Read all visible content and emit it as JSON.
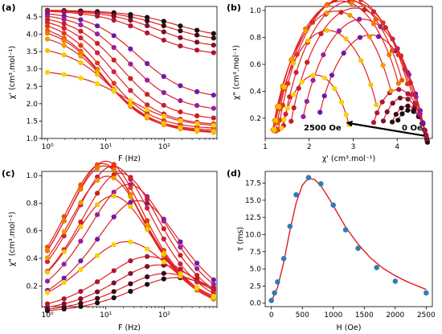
{
  "figure": {
    "panels": [
      {
        "label": "(a)",
        "xlabel": "F (Hz)",
        "ylabel": "χ' (cm³.mol⁻¹)"
      },
      {
        "label": "(b)",
        "xlabel": "χ' (cm³.mol⁻¹)",
        "ylabel": "χ\" (cm³.mol⁻¹)",
        "annotations": {
          "left": "2500 Oe",
          "right": "0 Oe"
        }
      },
      {
        "label": "(c)",
        "xlabel": "F (Hz)",
        "ylabel": "χ\" (cm³.mol⁻¹)"
      },
      {
        "label": "(d)",
        "xlabel": "H (Oe)",
        "ylabel": "τ (ms)"
      }
    ]
  },
  "chart_data": [
    {
      "type": "scatter",
      "title": "",
      "xlabel": "F (Hz)",
      "ylabel": "χ' (cm³.mol⁻¹)",
      "xscale": "log",
      "xlim": [
        0.8,
        800
      ],
      "ylim": [
        1.0,
        4.8
      ],
      "x_ticks": [
        1,
        10,
        100
      ],
      "x_tick_labels": [
        "10⁰",
        "10¹",
        "10²"
      ],
      "y_ticks": [
        1.0,
        1.5,
        2.0,
        2.5,
        3.0,
        3.5,
        4.0,
        4.5
      ],
      "y_tick_labels": [
        "1.0",
        "1.5",
        "2.0",
        "2.5",
        "3.0",
        "3.5",
        "4.0",
        "4.5"
      ],
      "grid": false,
      "curve_colors": [
        "#111111",
        "#3a0a1a",
        "#7a1030",
        "#b01438",
        "#6a1aa8",
        "#9a1f9f",
        "#cc1f1f",
        "#d02040",
        "#e03a10",
        "#ea5a00",
        "#ef7a00",
        "#f19a00",
        "#f5c400",
        "#f9d300"
      ],
      "series": [
        {
          "chi0": 4.7,
          "chis": 3.85,
          "tau": 0.001,
          "alpha": 0.3
        },
        {
          "chi0": 4.7,
          "chis": 3.75,
          "tau": 0.0015,
          "alpha": 0.3
        },
        {
          "chi0": 4.7,
          "chis": 3.55,
          "tau": 0.002,
          "alpha": 0.3
        },
        {
          "chi0": 4.7,
          "chis": 3.35,
          "tau": 0.003,
          "alpha": 0.3
        },
        {
          "chi0": 4.68,
          "chis": 2.1,
          "tau": 0.0045,
          "alpha": 0.28
        },
        {
          "chi0": 4.65,
          "chis": 1.75,
          "tau": 0.0065,
          "alpha": 0.27
        },
        {
          "chi0": 4.6,
          "chis": 1.5,
          "tau": 0.009,
          "alpha": 0.26
        },
        {
          "chi0": 4.55,
          "chis": 1.35,
          "tau": 0.012,
          "alpha": 0.25
        },
        {
          "chi0": 4.5,
          "chis": 1.25,
          "tau": 0.016,
          "alpha": 0.24
        },
        {
          "chi0": 4.4,
          "chis": 1.2,
          "tau": 0.018,
          "alpha": 0.24
        },
        {
          "chi0": 4.3,
          "chis": 1.15,
          "tau": 0.017,
          "alpha": 0.24
        },
        {
          "chi0": 4.1,
          "chis": 1.12,
          "tau": 0.015,
          "alpha": 0.25
        },
        {
          "chi0": 3.7,
          "chis": 1.15,
          "tau": 0.012,
          "alpha": 0.25
        },
        {
          "chi0": 3.0,
          "chis": 1.3,
          "tau": 0.007,
          "alpha": 0.3
        }
      ]
    },
    {
      "type": "scatter",
      "title": "",
      "xlabel": "χ' (cm³.mol⁻¹)",
      "ylabel": "χ\" (cm³.mol⁻¹)",
      "xlim": [
        1.0,
        4.8
      ],
      "ylim": [
        0.05,
        1.03
      ],
      "x_ticks": [
        1,
        2,
        3,
        4
      ],
      "x_tick_labels": [
        "1",
        "2",
        "3",
        "4"
      ],
      "y_ticks": [
        0.2,
        0.4,
        0.6,
        0.8,
        1.0
      ],
      "y_tick_labels": [
        "0.2",
        "0.4",
        "0.6",
        "0.8",
        "1.0"
      ],
      "grid": false,
      "note": "Cole-Cole plot of the same field-dependent data as panels (a) and (c); arrow runs from 0 Oe (right) to 2500 Oe (left)",
      "arrow_from": [
        4.62,
        0.07
      ],
      "arrow_to": [
        2.87,
        0.165
      ]
    },
    {
      "type": "scatter",
      "title": "",
      "xlabel": "F (Hz)",
      "ylabel": "χ\" (cm³.mol⁻¹)",
      "xscale": "log",
      "xlim": [
        0.8,
        800
      ],
      "ylim": [
        0.05,
        1.03
      ],
      "x_ticks": [
        1,
        10,
        100
      ],
      "x_tick_labels": [
        "10⁰",
        "10¹",
        "10²"
      ],
      "y_ticks": [
        0.2,
        0.4,
        0.6,
        0.8,
        1.0
      ],
      "y_tick_labels": [
        "0.2",
        "0.4",
        "0.6",
        "0.8",
        "1.0"
      ],
      "grid": false,
      "note": "same series as panel (a) (out-of-phase component)"
    },
    {
      "type": "scatter",
      "title": "",
      "xlabel": "H (Oe)",
      "ylabel": "τ (ms)",
      "xlim": [
        -100,
        2600
      ],
      "ylim": [
        -0.5,
        19.2
      ],
      "x_ticks": [
        0,
        500,
        1000,
        1500,
        2000,
        2500
      ],
      "x_tick_labels": [
        "0",
        "500",
        "1000",
        "1500",
        "2000",
        "2500"
      ],
      "y_ticks": [
        0.0,
        2.5,
        5.0,
        7.5,
        10.0,
        12.5,
        15.0,
        17.5
      ],
      "y_tick_labels": [
        "0.0",
        "2.5",
        "5.0",
        "7.5",
        "10.0",
        "12.5",
        "15.0",
        "17.5"
      ],
      "grid": false,
      "points": {
        "x": [
          0,
          50,
          100,
          200,
          300,
          400,
          600,
          800,
          1000,
          1200,
          1400,
          1700,
          2000,
          2500
        ],
        "y": [
          0.4,
          1.5,
          3.1,
          6.5,
          11.2,
          15.8,
          18.3,
          17.4,
          14.3,
          10.7,
          8.0,
          5.2,
          3.2,
          1.5
        ]
      },
      "point_color": "#2f7db5",
      "fit": {
        "x": [
          0,
          100,
          200,
          300,
          400,
          500,
          600,
          700,
          800,
          900,
          1000,
          1200,
          1400,
          1600,
          1800,
          2000,
          2200,
          2500
        ],
        "y": [
          0.3,
          2.3,
          6.0,
          10.6,
          14.6,
          17.2,
          18.2,
          18.0,
          17.1,
          15.7,
          14.2,
          11.1,
          8.6,
          6.6,
          5.1,
          4.0,
          3.1,
          2.0
        ]
      },
      "fit_color": "#e41a1c"
    }
  ]
}
